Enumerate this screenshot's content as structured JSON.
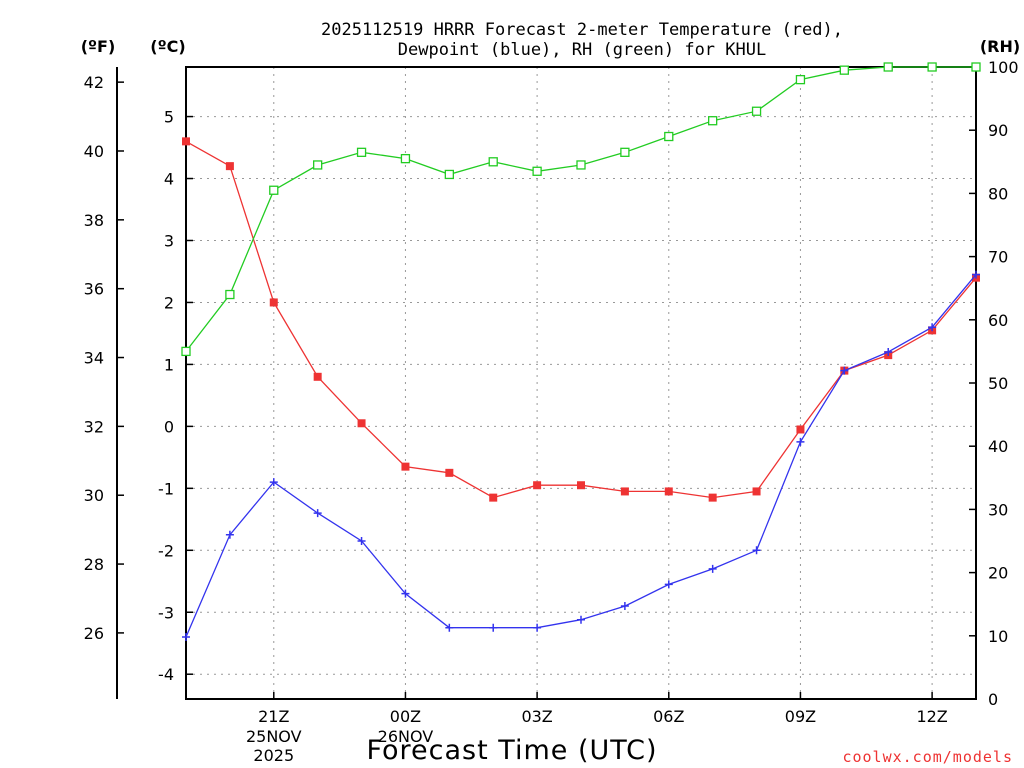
{
  "chart_data": {
    "type": "line",
    "title_line1": "2025112519 HRRR Forecast 2-meter Temperature (red),",
    "title_line2": "Dewpoint (blue), RH (green) for KHUL",
    "xlabel": "Forecast Time (UTC)",
    "credit": "coolwx.com/models",
    "units": {
      "fahrenheit": "(ºF)",
      "celsius": "(ºC)",
      "rh": "(RH)"
    },
    "x_hours": [
      19,
      20,
      21,
      22,
      23,
      24,
      25,
      26,
      27,
      28,
      29,
      30,
      31,
      32,
      33,
      34,
      35,
      36,
      37
    ],
    "xlim": [
      19,
      37
    ],
    "x_ticks": [
      {
        "hour": 21,
        "label": "21Z",
        "date": "25NOV",
        "year": "2025"
      },
      {
        "hour": 24,
        "label": "00Z",
        "date": "26NOV",
        "year": ""
      },
      {
        "hour": 27,
        "label": "03Z",
        "date": "",
        "year": ""
      },
      {
        "hour": 30,
        "label": "06Z",
        "date": "",
        "year": ""
      },
      {
        "hour": 33,
        "label": "09Z",
        "date": "",
        "year": ""
      },
      {
        "hour": 36,
        "label": "12Z",
        "date": "",
        "year": ""
      }
    ],
    "celsius_ylim": [
      -4.4,
      5.8
    ],
    "celsius_ticks": [
      "-4",
      "-3",
      "-2",
      "-1",
      "0",
      "1",
      "2",
      "3",
      "4",
      "5"
    ],
    "fahrenheit_ticks": [
      "26",
      "28",
      "30",
      "32",
      "34",
      "36",
      "38",
      "40",
      "42"
    ],
    "rh_ylim": [
      0,
      100
    ],
    "rh_ticks": [
      "0",
      "10",
      "20",
      "30",
      "40",
      "50",
      "60",
      "70",
      "80",
      "90",
      "100"
    ],
    "series": [
      {
        "name": "Temperature",
        "color": "#ee3333",
        "marker": "filled-square",
        "unit": "C",
        "values": [
          4.6,
          4.2,
          2.0,
          0.8,
          0.05,
          -0.65,
          -0.75,
          -1.15,
          -0.95,
          -0.95,
          -1.05,
          -1.05,
          -1.15,
          -1.05,
          -0.05,
          0.9,
          1.15,
          1.55,
          2.4
        ]
      },
      {
        "name": "Dewpoint",
        "color": "#3333ee",
        "marker": "plus",
        "unit": "C",
        "values": [
          -3.4,
          -1.75,
          -0.9,
          -1.4,
          -1.85,
          -2.7,
          -3.25,
          -3.25,
          -3.25,
          -3.12,
          -2.9,
          -2.55,
          -2.3,
          -2.0,
          -0.25,
          0.9,
          1.2,
          1.6,
          2.45
        ]
      },
      {
        "name": "RH",
        "color": "#22cc22",
        "marker": "open-square",
        "unit": "%",
        "values": [
          55,
          64,
          80.5,
          84.5,
          86.5,
          85.5,
          83,
          85,
          83.5,
          84.5,
          86.5,
          89,
          91.5,
          93,
          98,
          99.5,
          100,
          100,
          100
        ]
      }
    ]
  }
}
